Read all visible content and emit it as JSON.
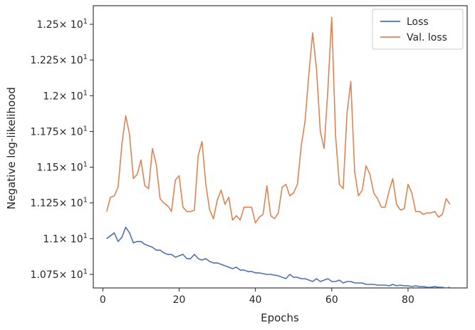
{
  "chart_data": {
    "type": "line",
    "xlabel": "Epochs",
    "ylabel": "Negative log-likelihood",
    "xlim": [
      -2.5,
      95.5
    ],
    "ylim": [
      10.655,
      12.63
    ],
    "x_ticks": [
      0,
      20,
      40,
      60,
      80
    ],
    "x_tick_labels": [
      "0",
      "20",
      "40",
      "60",
      "80"
    ],
    "y_ticks": [
      10.75,
      11.0,
      11.25,
      11.5,
      11.75,
      12.0,
      12.25,
      12.5
    ],
    "y_tick_labels": [
      {
        "mant": "1.075",
        "exp": "1"
      },
      {
        "mant": "1.1",
        "exp": "1"
      },
      {
        "mant": "1.125",
        "exp": "1"
      },
      {
        "mant": "1.15",
        "exp": "1"
      },
      {
        "mant": "1.175",
        "exp": "1"
      },
      {
        "mant": "1.2",
        "exp": "1"
      },
      {
        "mant": "1.225",
        "exp": "1"
      },
      {
        "mant": "1.25",
        "exp": "1"
      }
    ],
    "y_tick_base": "× 10",
    "legend_position": "top-right",
    "grid": false,
    "series": [
      {
        "name": "Loss",
        "color": "#4c72b0",
        "x": [
          1,
          2,
          3,
          4,
          5,
          6,
          7,
          8,
          9,
          10,
          11,
          12,
          13,
          14,
          15,
          16,
          17,
          18,
          19,
          20,
          21,
          22,
          23,
          24,
          25,
          26,
          27,
          28,
          29,
          30,
          31,
          32,
          33,
          34,
          35,
          36,
          37,
          38,
          39,
          40,
          41,
          42,
          43,
          44,
          45,
          46,
          47,
          48,
          49,
          50,
          51,
          52,
          53,
          54,
          55,
          56,
          57,
          58,
          59,
          60,
          61,
          62,
          63,
          64,
          65,
          66,
          67,
          68,
          69,
          70,
          71,
          72,
          73,
          74,
          75,
          76,
          77,
          78,
          79,
          80,
          81,
          82,
          83,
          84,
          85,
          86,
          87,
          88,
          89,
          90,
          91
        ],
        "y": [
          11.0,
          11.02,
          11.04,
          10.98,
          11.01,
          11.08,
          11.04,
          10.97,
          10.98,
          10.98,
          10.96,
          10.95,
          10.94,
          10.92,
          10.92,
          10.9,
          10.89,
          10.89,
          10.87,
          10.88,
          10.89,
          10.86,
          10.86,
          10.89,
          10.86,
          10.85,
          10.86,
          10.84,
          10.83,
          10.83,
          10.82,
          10.81,
          10.8,
          10.79,
          10.8,
          10.78,
          10.78,
          10.77,
          10.77,
          10.76,
          10.76,
          10.755,
          10.75,
          10.75,
          10.745,
          10.74,
          10.73,
          10.72,
          10.75,
          10.73,
          10.73,
          10.72,
          10.72,
          10.71,
          10.7,
          10.72,
          10.7,
          10.71,
          10.72,
          10.7,
          10.7,
          10.71,
          10.69,
          10.7,
          10.7,
          10.69,
          10.69,
          10.69,
          10.68,
          10.68,
          10.68,
          10.675,
          10.675,
          10.675,
          10.67,
          10.68,
          10.67,
          10.675,
          10.67,
          10.67,
          10.665,
          10.67,
          10.665,
          10.665,
          10.66,
          10.66,
          10.665,
          10.66,
          10.66,
          10.655,
          10.66
        ]
      },
      {
        "name": "Val. loss",
        "color": "#dd8452",
        "x": [
          1,
          2,
          3,
          4,
          5,
          6,
          7,
          8,
          9,
          10,
          11,
          12,
          13,
          14,
          15,
          16,
          17,
          18,
          19,
          20,
          21,
          22,
          23,
          24,
          25,
          26,
          27,
          28,
          29,
          30,
          31,
          32,
          33,
          34,
          35,
          36,
          37,
          38,
          39,
          40,
          41,
          42,
          43,
          44,
          45,
          46,
          47,
          48,
          49,
          50,
          51,
          52,
          53,
          54,
          55,
          56,
          57,
          58,
          59,
          60,
          61,
          62,
          63,
          64,
          65,
          66,
          67,
          68,
          69,
          70,
          71,
          72,
          73,
          74,
          75,
          76,
          77,
          78,
          79,
          80,
          81,
          82,
          83,
          84,
          85,
          86,
          87,
          88,
          89,
          90,
          91
        ],
        "y": [
          11.19,
          11.29,
          11.3,
          11.36,
          11.66,
          11.86,
          11.73,
          11.42,
          11.45,
          11.55,
          11.37,
          11.35,
          11.63,
          11.52,
          11.28,
          11.25,
          11.23,
          11.19,
          11.41,
          11.44,
          11.22,
          11.19,
          11.19,
          11.2,
          11.58,
          11.68,
          11.38,
          11.2,
          11.14,
          11.27,
          11.34,
          11.24,
          11.29,
          11.13,
          11.16,
          11.13,
          11.22,
          11.22,
          11.22,
          11.11,
          11.15,
          11.17,
          11.37,
          11.16,
          11.14,
          11.18,
          11.36,
          11.38,
          11.3,
          11.32,
          11.38,
          11.65,
          11.82,
          12.15,
          12.44,
          12.19,
          11.75,
          11.63,
          12.05,
          12.55,
          11.72,
          11.38,
          11.35,
          11.88,
          12.1,
          11.47,
          11.3,
          11.34,
          11.51,
          11.45,
          11.32,
          11.28,
          11.22,
          11.22,
          11.33,
          11.42,
          11.24,
          11.2,
          11.21,
          11.38,
          11.32,
          11.19,
          11.19,
          11.17,
          11.18,
          11.18,
          11.19,
          11.15,
          11.17,
          11.28,
          11.24
        ]
      }
    ]
  }
}
